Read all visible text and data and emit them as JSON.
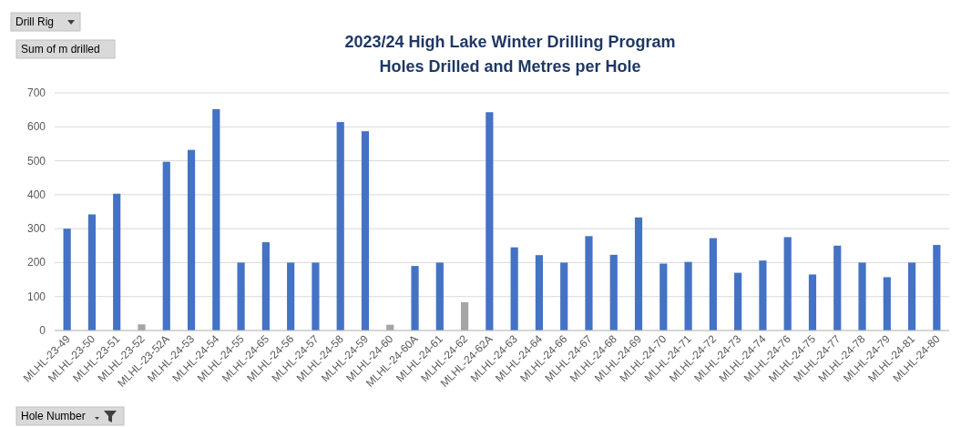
{
  "chart_data": {
    "type": "bar",
    "title": "2023/24 High Lake Winter Drilling Program",
    "subtitle": "Holes Drilled and Metres per Hole",
    "categories": [
      "MLHL-23-49",
      "MLHL-23-50",
      "MLHL-23-51",
      "MLHL-23-52",
      "MLHL-23-52A",
      "MLHL-24-53",
      "MLHL-24-54",
      "MLHL-24-55",
      "MLHL-24-65",
      "MLHL-24-56",
      "MLHL-24-57",
      "MLHL-24-58",
      "MLHL-24-59",
      "MLHL-24-60",
      "MLHL-24-60A",
      "MLHL-24-61",
      "MLHL-24-62",
      "MLHL-24-62A",
      "MLHL-24-63",
      "MLHL-24-64",
      "MLHL-24-66",
      "MLHL-24-67",
      "MLHL-24-68",
      "MLHL-24-69",
      "MLHL-24-70",
      "MLHL-24-71",
      "MLHL-24-72",
      "MLHL-24-73",
      "MLHL-24-74",
      "MLHL-24-76",
      "MLHL-24-75",
      "MLHL-24-77",
      "MLHL-24-78",
      "MLHL-24-79",
      "MLHL-24-81",
      "MLHL-24-80"
    ],
    "values": [
      300,
      342,
      403,
      18,
      497,
      532,
      652,
      200,
      260,
      200,
      200,
      614,
      587,
      17,
      190,
      200,
      83,
      643,
      245,
      222,
      200,
      278,
      223,
      333,
      197,
      202,
      272,
      170,
      206,
      275,
      165,
      250,
      200,
      157,
      200,
      252
    ],
    "colors": [
      "#4472c4",
      "#4472c4",
      "#4472c4",
      "#a5a5a5",
      "#4472c4",
      "#4472c4",
      "#4472c4",
      "#4472c4",
      "#4472c4",
      "#4472c4",
      "#4472c4",
      "#4472c4",
      "#4472c4",
      "#a5a5a5",
      "#4472c4",
      "#4472c4",
      "#a5a5a5",
      "#4472c4",
      "#4472c4",
      "#4472c4",
      "#4472c4",
      "#4472c4",
      "#4472c4",
      "#4472c4",
      "#4472c4",
      "#4472c4",
      "#4472c4",
      "#4472c4",
      "#4472c4",
      "#4472c4",
      "#4472c4",
      "#4472c4",
      "#4472c4",
      "#4472c4",
      "#4472c4",
      "#4472c4"
    ],
    "ylim": [
      0,
      700
    ],
    "yticks": [
      0,
      100,
      200,
      300,
      400,
      500,
      600,
      700
    ],
    "grid": "y",
    "annotations": [
      "Drill Rig",
      "Sum of m drilled",
      "Hole Number"
    ]
  }
}
